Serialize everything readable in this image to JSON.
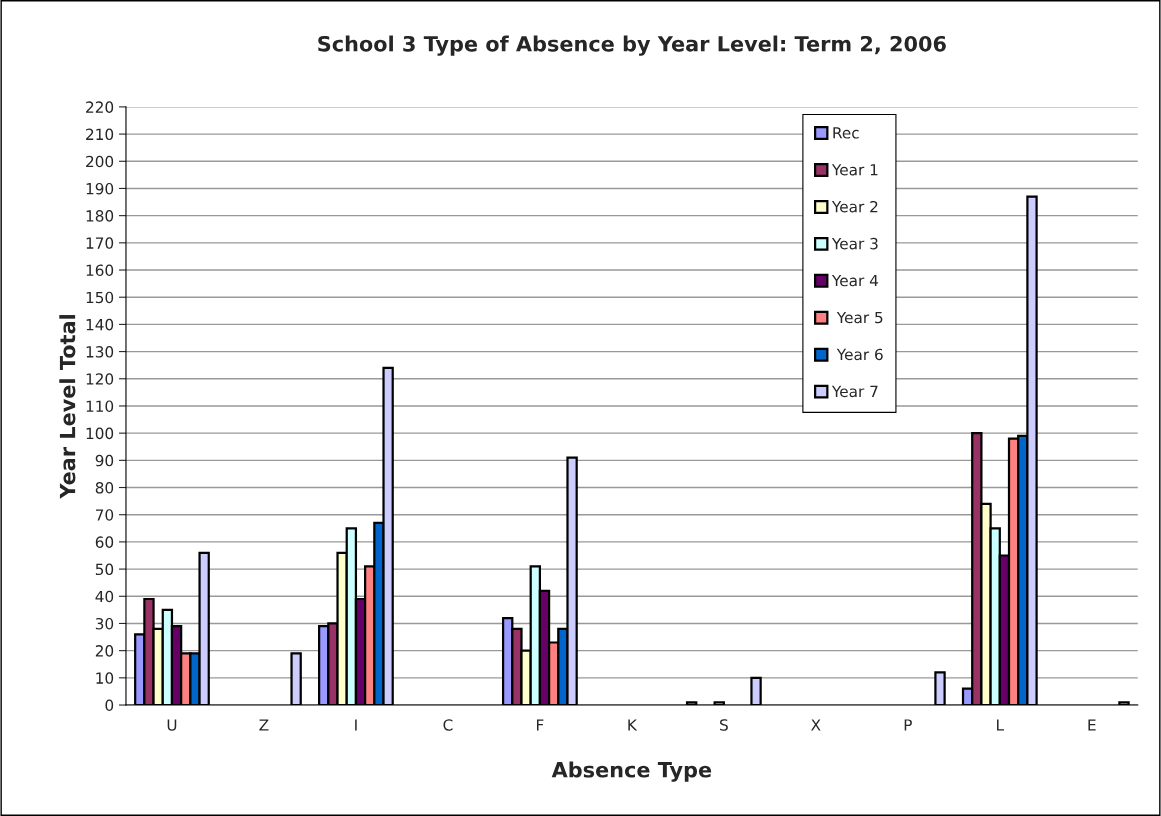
{
  "chart_data": {
    "type": "bar",
    "title": "School 3 Type of Absence by Year Level: Term 2, 2006",
    "xlabel": "Absence Type",
    "ylabel": "Year Level Total",
    "categories": [
      "U",
      "Z",
      "I",
      "C",
      "F",
      "K",
      "S",
      "X",
      "P",
      "L",
      "E"
    ],
    "series": [
      {
        "name": "Rec",
        "color": "#9999ff",
        "values": [
          26,
          null,
          29,
          null,
          32,
          null,
          1,
          null,
          null,
          6,
          null
        ]
      },
      {
        "name": "Year 1",
        "color": "#993366",
        "values": [
          39,
          null,
          30,
          null,
          28,
          null,
          null,
          null,
          null,
          100,
          null
        ]
      },
      {
        "name": "Year 2",
        "color": "#ffffcc",
        "values": [
          28,
          null,
          56,
          null,
          20,
          null,
          null,
          null,
          null,
          74,
          null
        ]
      },
      {
        "name": "Year 3",
        "color": "#ccffff",
        "values": [
          35,
          null,
          65,
          null,
          51,
          null,
          1,
          null,
          null,
          65,
          null
        ]
      },
      {
        "name": "Year 4",
        "color": "#660066",
        "values": [
          29,
          null,
          39,
          null,
          42,
          null,
          null,
          null,
          null,
          55,
          null
        ]
      },
      {
        "name": " Year 5",
        "color": "#ff8080",
        "values": [
          19,
          null,
          51,
          null,
          23,
          null,
          null,
          null,
          null,
          98,
          null
        ]
      },
      {
        "name": " Year 6",
        "color": "#0066cc",
        "values": [
          19,
          null,
          67,
          null,
          28,
          null,
          null,
          null,
          null,
          99,
          null
        ]
      },
      {
        "name": "Year 7",
        "color": "#ccccff",
        "values": [
          56,
          19,
          124,
          null,
          91,
          null,
          10,
          null,
          12,
          187,
          1
        ]
      }
    ],
    "ylim": [
      0,
      220
    ],
    "yticks": [
      0,
      10,
      20,
      30,
      40,
      50,
      60,
      70,
      80,
      90,
      100,
      110,
      120,
      130,
      140,
      150,
      160,
      170,
      180,
      190,
      200,
      210,
      220
    ],
    "grid": "y",
    "legend": "top"
  }
}
